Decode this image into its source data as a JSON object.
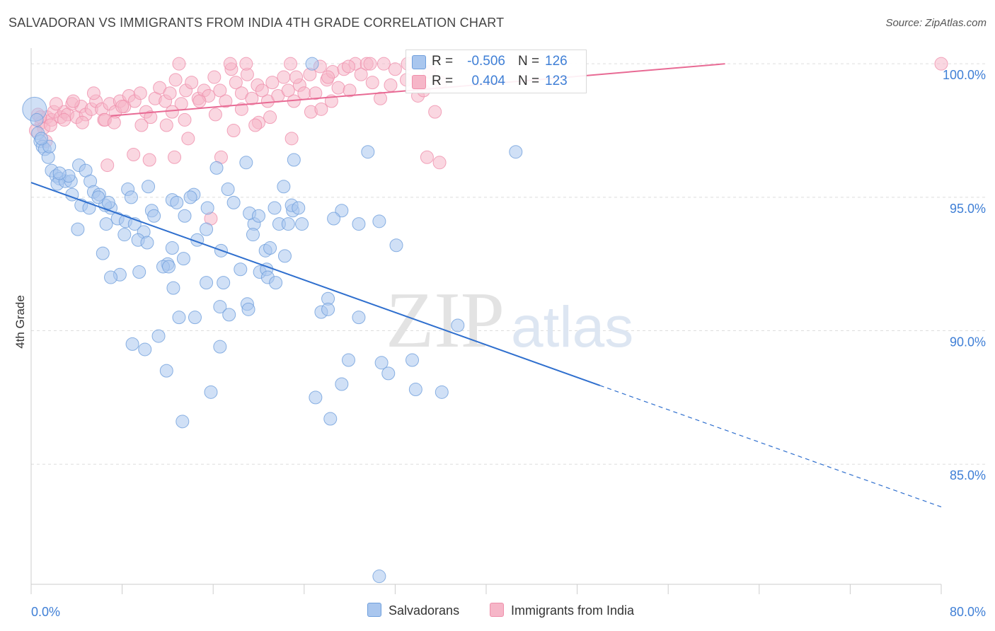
{
  "title": "SALVADORAN VS IMMIGRANTS FROM INDIA 4TH GRADE CORRELATION CHART",
  "source": "Source: ZipAtlas.com",
  "watermark": {
    "zip": "ZIP",
    "atlas": "atlas"
  },
  "colors": {
    "blue_fill": "#a9c6ee",
    "blue_stroke": "#6f9fdc",
    "blue_line": "#2f6fce",
    "pink_fill": "#f6b6c8",
    "pink_stroke": "#ef8fab",
    "pink_line": "#e86a94",
    "axis_label": "#3f7fd6",
    "grid": "#dddddd"
  },
  "legend": {
    "rows": [
      {
        "name": "Salvadorans",
        "r_label": "R =",
        "r_value": "-0.506",
        "n_label": "N =",
        "n_value": "126"
      },
      {
        "name": "Immigrants from India",
        "r_label": "R =",
        "r_value": "0.404",
        "n_label": "N =",
        "n_value": "123"
      }
    ]
  },
  "chart_data": {
    "type": "scatter",
    "title": "SALVADORAN VS IMMIGRANTS FROM INDIA 4TH GRADE CORRELATION CHART",
    "xlabel": "",
    "ylabel": "4th Grade",
    "xlim": [
      0,
      80
    ],
    "ylim": [
      80.5,
      100.8
    ],
    "x_tick_labels": [
      "0.0%",
      "80.0%"
    ],
    "y_ticks": [
      85,
      90,
      95,
      100
    ],
    "y_tick_labels": [
      "85.0%",
      "90.0%",
      "95.0%",
      "100.0%"
    ],
    "grid": "horizontal dashed",
    "legend_position": "top-center",
    "series": [
      {
        "name": "Salvadorans",
        "color": "#a9c6ee",
        "trend": {
          "x0": 0,
          "y0": 95.55,
          "x1": 50,
          "y1": 87.95,
          "dashed_to_x": 80,
          "dashed_to_y": 83.4
        },
        "points": [
          [
            0.3,
            98.3
          ],
          [
            0.5,
            97.9
          ],
          [
            0.6,
            97.4
          ],
          [
            0.8,
            97.1
          ],
          [
            1.0,
            96.9
          ],
          [
            1.2,
            96.8
          ],
          [
            1.5,
            96.5
          ],
          [
            1.8,
            96.0
          ],
          [
            2.2,
            95.8
          ],
          [
            2.5,
            95.7
          ],
          [
            2.3,
            95.5
          ],
          [
            3.0,
            95.6
          ],
          [
            3.5,
            95.6
          ],
          [
            4.2,
            96.2
          ],
          [
            4.8,
            96.0
          ],
          [
            5.2,
            95.6
          ],
          [
            5.5,
            95.2
          ],
          [
            3.6,
            95.1
          ],
          [
            6.0,
            95.1
          ],
          [
            8.5,
            95.3
          ],
          [
            10.3,
            95.4
          ],
          [
            8.8,
            95.0
          ],
          [
            12.4,
            94.9
          ],
          [
            12.8,
            94.8
          ],
          [
            14.3,
            95.1
          ],
          [
            14.0,
            95.0
          ],
          [
            17.3,
            95.3
          ],
          [
            17.8,
            94.8
          ],
          [
            7.0,
            94.6
          ],
          [
            6.5,
            94.7
          ],
          [
            4.4,
            94.7
          ],
          [
            5.1,
            94.6
          ],
          [
            15.5,
            94.6
          ],
          [
            10.6,
            94.5
          ],
          [
            10.8,
            94.3
          ],
          [
            13.5,
            94.3
          ],
          [
            23.0,
            94.5
          ],
          [
            21.4,
            94.6
          ],
          [
            22.9,
            94.7
          ],
          [
            23.5,
            94.6
          ],
          [
            27.3,
            94.5
          ],
          [
            26.6,
            94.2
          ],
          [
            19.6,
            94.0
          ],
          [
            21.8,
            94.0
          ],
          [
            22.6,
            94.0
          ],
          [
            23.8,
            94.0
          ],
          [
            28.8,
            94.0
          ],
          [
            6.6,
            94.0
          ],
          [
            7.6,
            94.2
          ],
          [
            8.3,
            94.1
          ],
          [
            9.1,
            94.0
          ],
          [
            4.1,
            93.8
          ],
          [
            8.2,
            93.6
          ],
          [
            9.9,
            93.7
          ],
          [
            15.4,
            93.8
          ],
          [
            19.5,
            93.6
          ],
          [
            20.6,
            93.0
          ],
          [
            9.4,
            93.4
          ],
          [
            10.2,
            93.3
          ],
          [
            12.4,
            93.1
          ],
          [
            14.6,
            93.4
          ],
          [
            16.7,
            93.0
          ],
          [
            21.0,
            93.1
          ],
          [
            22.3,
            92.8
          ],
          [
            6.3,
            92.9
          ],
          [
            32.1,
            93.2
          ],
          [
            12.0,
            92.5
          ],
          [
            13.4,
            92.7
          ],
          [
            11.6,
            92.4
          ],
          [
            12.1,
            92.4
          ],
          [
            18.4,
            92.3
          ],
          [
            20.1,
            92.2
          ],
          [
            20.7,
            92.3
          ],
          [
            7.8,
            92.1
          ],
          [
            7.0,
            92.0
          ],
          [
            9.5,
            92.2
          ],
          [
            20.8,
            92.0
          ],
          [
            21.5,
            91.8
          ],
          [
            12.5,
            91.6
          ],
          [
            15.4,
            91.8
          ],
          [
            16.9,
            91.8
          ],
          [
            19.0,
            91.0
          ],
          [
            26.1,
            91.2
          ],
          [
            19.1,
            90.8
          ],
          [
            16.6,
            90.9
          ],
          [
            17.4,
            90.6
          ],
          [
            25.5,
            90.7
          ],
          [
            26.1,
            90.8
          ],
          [
            13.0,
            90.5
          ],
          [
            14.4,
            90.5
          ],
          [
            28.8,
            90.5
          ],
          [
            37.5,
            90.2
          ],
          [
            11.2,
            89.8
          ],
          [
            8.9,
            89.5
          ],
          [
            10.0,
            89.3
          ],
          [
            16.6,
            89.4
          ],
          [
            27.9,
            88.9
          ],
          [
            33.5,
            88.9
          ],
          [
            30.8,
            88.8
          ],
          [
            31.4,
            88.4
          ],
          [
            11.9,
            88.5
          ],
          [
            27.3,
            88.0
          ],
          [
            15.8,
            87.7
          ],
          [
            25.0,
            87.5
          ],
          [
            33.8,
            87.8
          ],
          [
            36.1,
            87.7
          ],
          [
            26.3,
            86.7
          ],
          [
            13.3,
            86.6
          ],
          [
            42.6,
            96.7
          ],
          [
            29.6,
            96.7
          ],
          [
            23.1,
            96.4
          ],
          [
            22.2,
            95.4
          ],
          [
            16.3,
            96.1
          ],
          [
            18.9,
            96.3
          ],
          [
            19.2,
            94.4
          ],
          [
            30.6,
            94.1
          ],
          [
            20.0,
            94.3
          ],
          [
            30.6,
            80.8
          ],
          [
            24.7,
            100.0
          ],
          [
            3.3,
            95.8
          ],
          [
            2.5,
            95.9
          ],
          [
            5.9,
            95.0
          ],
          [
            6.8,
            94.8
          ],
          [
            1.6,
            96.9
          ],
          [
            0.9,
            97.2
          ]
        ]
      },
      {
        "name": "Immigrants from India",
        "color": "#f6b6c8",
        "trend": {
          "x0": 7,
          "y0": 98.05,
          "x1": 61,
          "y1": 100.0
        },
        "points": [
          [
            0.6,
            98.1
          ],
          [
            0.9,
            97.8
          ],
          [
            1.1,
            97.6
          ],
          [
            1.4,
            98.0
          ],
          [
            1.8,
            97.9
          ],
          [
            2.0,
            98.2
          ],
          [
            2.6,
            98.0
          ],
          [
            2.9,
            98.2
          ],
          [
            3.2,
            98.1
          ],
          [
            3.6,
            98.5
          ],
          [
            4.0,
            98.0
          ],
          [
            4.4,
            98.4
          ],
          [
            4.8,
            98.1
          ],
          [
            5.3,
            98.3
          ],
          [
            5.7,
            98.6
          ],
          [
            6.2,
            98.3
          ],
          [
            6.4,
            97.9
          ],
          [
            6.9,
            98.5
          ],
          [
            7.4,
            98.2
          ],
          [
            7.8,
            98.6
          ],
          [
            8.2,
            98.4
          ],
          [
            8.6,
            98.8
          ],
          [
            9.1,
            98.6
          ],
          [
            9.6,
            98.9
          ],
          [
            10.1,
            98.2
          ],
          [
            10.5,
            98.0
          ],
          [
            10.9,
            98.7
          ],
          [
            11.3,
            99.1
          ],
          [
            11.8,
            98.6
          ],
          [
            12.2,
            98.9
          ],
          [
            12.7,
            99.4
          ],
          [
            13.2,
            98.5
          ],
          [
            13.6,
            99.0
          ],
          [
            14.1,
            99.3
          ],
          [
            14.7,
            98.7
          ],
          [
            15.2,
            99.0
          ],
          [
            15.6,
            98.8
          ],
          [
            16.1,
            99.5
          ],
          [
            16.6,
            99.0
          ],
          [
            17.1,
            98.6
          ],
          [
            17.6,
            99.8
          ],
          [
            18.0,
            99.3
          ],
          [
            18.5,
            98.9
          ],
          [
            19.0,
            99.6
          ],
          [
            19.4,
            98.7
          ],
          [
            19.9,
            99.2
          ],
          [
            20.3,
            99.0
          ],
          [
            20.8,
            98.6
          ],
          [
            21.2,
            99.3
          ],
          [
            21.7,
            98.8
          ],
          [
            22.2,
            99.5
          ],
          [
            22.6,
            99.0
          ],
          [
            23.1,
            98.6
          ],
          [
            23.6,
            99.2
          ],
          [
            24.0,
            98.9
          ],
          [
            24.5,
            99.6
          ],
          [
            25.0,
            98.9
          ],
          [
            25.4,
            99.9
          ],
          [
            26.0,
            99.4
          ],
          [
            26.5,
            99.7
          ],
          [
            27.0,
            99.1
          ],
          [
            27.5,
            99.8
          ],
          [
            28.0,
            99.0
          ],
          [
            28.5,
            100.0
          ],
          [
            29.0,
            99.6
          ],
          [
            29.5,
            100.0
          ],
          [
            30.0,
            99.3
          ],
          [
            31.0,
            100.0
          ],
          [
            32.0,
            99.8
          ],
          [
            33.0,
            99.4
          ],
          [
            34.0,
            98.8
          ],
          [
            35.0,
            99.7
          ],
          [
            36.0,
            99.3
          ],
          [
            22.8,
            100.0
          ],
          [
            17.5,
            100.0
          ],
          [
            18.9,
            100.0
          ],
          [
            13.0,
            100.0
          ],
          [
            9.0,
            96.6
          ],
          [
            10.4,
            96.4
          ],
          [
            12.6,
            96.5
          ],
          [
            16.7,
            96.5
          ],
          [
            34.8,
            96.5
          ],
          [
            35.9,
            96.3
          ],
          [
            15.8,
            94.2
          ],
          [
            6.7,
            96.2
          ],
          [
            13.8,
            97.2
          ],
          [
            17.8,
            97.5
          ],
          [
            22.9,
            97.2
          ],
          [
            20.0,
            97.8
          ],
          [
            11.9,
            97.7
          ],
          [
            9.7,
            97.7
          ],
          [
            6.5,
            97.9
          ],
          [
            2.9,
            97.9
          ],
          [
            0.4,
            97.5
          ],
          [
            1.3,
            97.1
          ],
          [
            4.5,
            97.8
          ],
          [
            26.1,
            99.5
          ],
          [
            35.5,
            98.2
          ],
          [
            80.0,
            100.0
          ],
          [
            33.1,
            100.0
          ],
          [
            29.8,
            100.0
          ],
          [
            24.6,
            98.2
          ],
          [
            18.5,
            98.3
          ],
          [
            14.8,
            98.6
          ],
          [
            8.0,
            98.4
          ],
          [
            21.0,
            98.0
          ],
          [
            12.4,
            98.2
          ],
          [
            3.7,
            98.6
          ],
          [
            2.2,
            98.5
          ],
          [
            5.5,
            98.9
          ],
          [
            0.8,
            98.0
          ],
          [
            1.7,
            97.7
          ],
          [
            7.3,
            97.8
          ],
          [
            16.2,
            98.1
          ],
          [
            19.7,
            97.7
          ],
          [
            23.3,
            99.5
          ],
          [
            27.9,
            99.9
          ],
          [
            31.6,
            99.2
          ],
          [
            34.5,
            99.0
          ],
          [
            30.7,
            98.7
          ],
          [
            26.4,
            98.6
          ],
          [
            25.5,
            98.3
          ],
          [
            13.5,
            97.9
          ]
        ]
      }
    ]
  }
}
